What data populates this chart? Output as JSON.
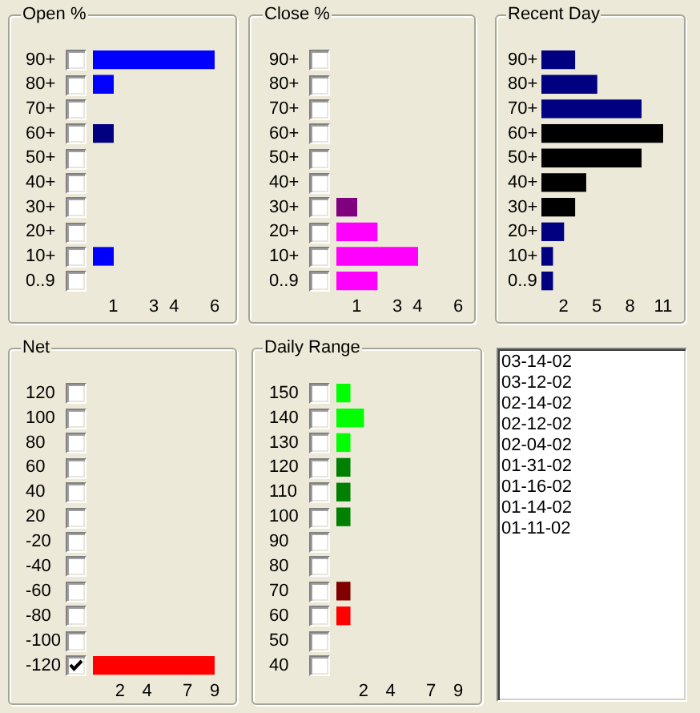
{
  "chart_data": [
    {
      "type": "bar",
      "title": "Open %",
      "orientation": "horizontal",
      "categories": [
        "90+",
        "80+",
        "70+",
        "60+",
        "50+",
        "40+",
        "30+",
        "20+",
        "10+",
        "0..9"
      ],
      "values": [
        6,
        1,
        0,
        1,
        0,
        0,
        0,
        0,
        1,
        0
      ],
      "colors": [
        "#0000ff",
        "#0000ff",
        null,
        "#000080",
        null,
        null,
        null,
        null,
        "#0000ff",
        null
      ],
      "xlim": [
        0,
        6
      ],
      "xticks": [
        1,
        3,
        4,
        6
      ],
      "grid": false
    },
    {
      "type": "bar",
      "title": "Close %",
      "orientation": "horizontal",
      "categories": [
        "90+",
        "80+",
        "70+",
        "60+",
        "50+",
        "40+",
        "30+",
        "20+",
        "10+",
        "0..9"
      ],
      "values": [
        0,
        0,
        0,
        0,
        0,
        0,
        1,
        2,
        4,
        2
      ],
      "colors": [
        null,
        null,
        null,
        null,
        null,
        null,
        "#800080",
        "#ff00ff",
        "#ff00ff",
        "#ff00ff"
      ],
      "xlim": [
        0,
        6
      ],
      "xticks": [
        1,
        3,
        4,
        6
      ],
      "grid": false
    },
    {
      "type": "bar",
      "title": "Recent Day",
      "orientation": "horizontal",
      "categories": [
        "90+",
        "80+",
        "70+",
        "60+",
        "50+",
        "40+",
        "30+",
        "20+",
        "10+",
        "0..9"
      ],
      "values": [
        3,
        5,
        9,
        11,
        9,
        4,
        3,
        2,
        1,
        1
      ],
      "colors": [
        "#000080",
        "#000080",
        "#000080",
        "#000000",
        "#000000",
        "#000000",
        "#000000",
        "#000080",
        "#000080",
        "#000080"
      ],
      "xlim": [
        0,
        11
      ],
      "xticks": [
        2,
        5,
        8,
        11
      ],
      "grid": false
    },
    {
      "type": "bar",
      "title": "Net",
      "orientation": "horizontal",
      "categories": [
        "120",
        "100",
        "80",
        "60",
        "40",
        "20",
        "-20",
        "-40",
        "-60",
        "-80",
        "-100",
        "-120"
      ],
      "values": [
        0,
        0,
        0,
        0,
        0,
        0,
        0,
        0,
        0,
        0,
        0,
        9
      ],
      "colors": [
        null,
        null,
        null,
        null,
        null,
        null,
        null,
        null,
        null,
        null,
        null,
        "#ff0000"
      ],
      "xlim": [
        0,
        9
      ],
      "xticks": [
        2,
        4,
        7,
        9
      ],
      "grid": false
    },
    {
      "type": "bar",
      "title": "Daily Range",
      "orientation": "horizontal",
      "categories": [
        "150",
        "140",
        "130",
        "120",
        "110",
        "100",
        "90",
        "80",
        "70",
        "60",
        "50",
        "40"
      ],
      "values": [
        1,
        2,
        1,
        1,
        1,
        1,
        0,
        0,
        1,
        1,
        0,
        0
      ],
      "colors": [
        "#00ff00",
        "#00ff00",
        "#00ff00",
        "#008000",
        "#008000",
        "#008000",
        null,
        null,
        "#800000",
        "#ff0000",
        null,
        null
      ],
      "xlim": [
        0,
        9
      ],
      "xticks": [
        2,
        4,
        7,
        9
      ],
      "grid": false
    },
    {
      "type": "other",
      "annotations": [
        "03-14-02",
        "03-12-02",
        "02-14-02",
        "02-12-02",
        "02-04-02",
        "01-31-02",
        "01-16-02",
        "01-14-02",
        "01-11-02"
      ]
    }
  ]
}
